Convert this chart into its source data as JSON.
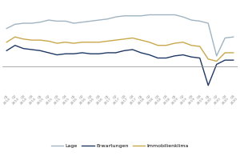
{
  "labels": [
    "Q1\n2014",
    "Q2\n2014",
    "Q3\n2014",
    "Q4\n2014",
    "Q1\n2015",
    "Q2\n2015",
    "Q3\n2015",
    "Q4\n2015",
    "Q1\n2016",
    "Q2\n2016",
    "Q3\n2016",
    "Q4\n2016",
    "Q1\n2017",
    "Q2\n2017",
    "Q3\n2017",
    "Q4\n2017",
    "Q1\n2018",
    "Q2\n2018",
    "Q3\n2018",
    "Q4\n2018",
    "Q1\n2019",
    "Q2\n2019",
    "Q3\n2019",
    "Q4\n2019",
    "Q1\n2020",
    "Q2\n2020",
    "Q3\n2020",
    "Q4\n2020"
  ],
  "lage": [
    36,
    40,
    41,
    41,
    42,
    44,
    43,
    43,
    41,
    42,
    43,
    44,
    45,
    47,
    48,
    48,
    48,
    49,
    49,
    49,
    49,
    47,
    44,
    43,
    41,
    10,
    27,
    28
  ],
  "erwartungen": [
    15,
    20,
    17,
    16,
    15,
    13,
    11,
    12,
    12,
    13,
    12,
    12,
    13,
    13,
    15,
    16,
    13,
    11,
    8,
    8,
    10,
    11,
    9,
    8,
    -18,
    2,
    6,
    6
  ],
  "immobilienklima": [
    23,
    28,
    26,
    25,
    25,
    24,
    22,
    23,
    22,
    23,
    23,
    23,
    24,
    25,
    26,
    27,
    25,
    23,
    20,
    20,
    22,
    23,
    20,
    19,
    7,
    5,
    13,
    13
  ],
  "lage_color": "#a0b4c2",
  "erwartungen_color": "#1f3864",
  "immobilienklima_color": "#c9a84c",
  "background_color": "#ffffff",
  "grid_color": "#d0d0d0",
  "legend_labels": [
    "Lage",
    "Erwartungen",
    "Immobilienklima"
  ],
  "ylim": [
    -25,
    60
  ],
  "linewidth": 1.0
}
